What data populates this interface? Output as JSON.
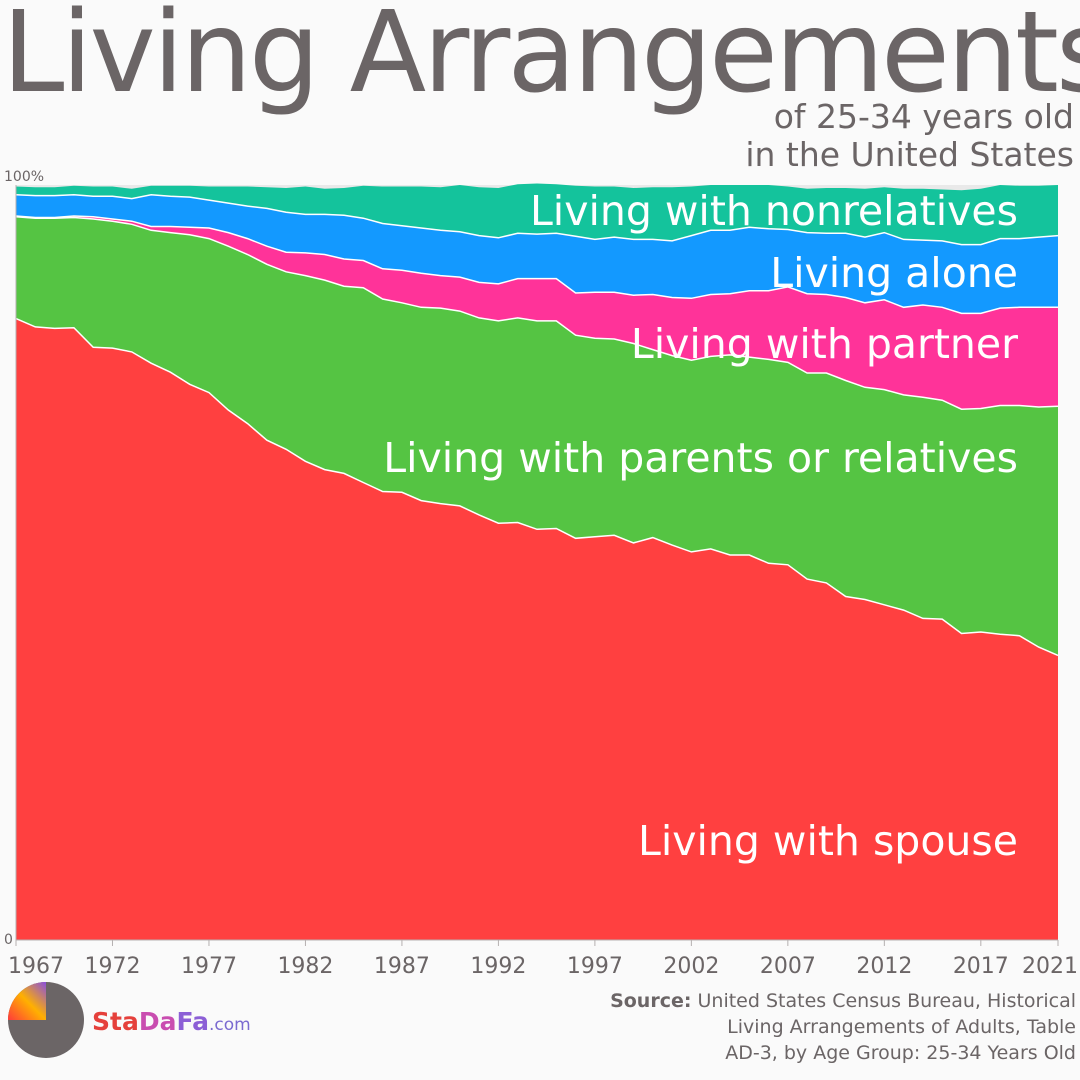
{
  "header": {
    "title": "Living Arrangements",
    "subtitle_line1": "of 25-34 years old",
    "subtitle_line2": "in the United States"
  },
  "source": {
    "prefix": "Source:",
    "line1": "United States Census Bureau, Historical",
    "line2": "Living Arrangements of Adults, Table",
    "line3": "AD-3, by Age Group: 25-34 Years Old"
  },
  "brand": {
    "name_sta": "Sta",
    "name_da": "Da",
    "name_fa": "Fa",
    "name_com": ".com"
  },
  "chart_data": {
    "type": "area",
    "stacked": true,
    "x": [
      1967,
      1968,
      1969,
      1970,
      1971,
      1972,
      1973,
      1974,
      1975,
      1976,
      1977,
      1978,
      1979,
      1980,
      1981,
      1982,
      1983,
      1984,
      1985,
      1986,
      1987,
      1988,
      1989,
      1990,
      1991,
      1992,
      1993,
      1994,
      1995,
      1996,
      1997,
      1998,
      1999,
      2000,
      2001,
      2002,
      2003,
      2004,
      2005,
      2006,
      2007,
      2008,
      2009,
      2010,
      2011,
      2012,
      2013,
      2014,
      2015,
      2016,
      2017,
      2018,
      2019,
      2020,
      2021
    ],
    "x_ticks": [
      1967,
      1972,
      1977,
      1982,
      1987,
      1992,
      1997,
      2002,
      2007,
      2012,
      2017,
      2021
    ],
    "y_ticks": [
      "0",
      "100%"
    ],
    "ylim": [
      0,
      100
    ],
    "xlim": [
      1967,
      2021
    ],
    "grid": false,
    "legend": "labels placed inside areas",
    "colors": {
      "spouse": "#ff4040",
      "parents": "#55c443",
      "partner": "#ff3399",
      "alone": "#1399ff",
      "nonrelatives": "#14c39c",
      "top_remainder": "#e9e9e9"
    },
    "series": [
      {
        "name": "Living with spouse",
        "key": "spouse",
        "values": [
          82.3,
          81.2,
          81.0,
          81.1,
          78.5,
          78.4,
          77.9,
          76.4,
          75.2,
          73.6,
          72.5,
          70.2,
          68.4,
          66.2,
          65.0,
          63.4,
          62.3,
          61.8,
          60.6,
          59.4,
          59.3,
          58.2,
          57.8,
          57.5,
          56.3,
          55.2,
          55.3,
          54.4,
          54.5,
          53.2,
          53.4,
          53.6,
          52.6,
          53.3,
          52.3,
          51.4,
          51.8,
          51.0,
          51.0,
          49.9,
          49.7,
          47.8,
          47.3,
          45.5,
          45.1,
          44.4,
          43.7,
          42.6,
          42.5,
          40.6,
          40.8,
          40.5,
          40.3,
          38.8,
          37.7
        ]
      },
      {
        "name": "Living with parents or relatives",
        "key": "parents",
        "values": [
          13.5,
          14.4,
          14.6,
          14.6,
          17.0,
          16.8,
          16.9,
          17.6,
          18.5,
          19.8,
          20.4,
          21.7,
          22.4,
          23.3,
          23.5,
          24.6,
          25.1,
          24.8,
          25.8,
          25.5,
          25.1,
          25.6,
          25.9,
          25.8,
          26.1,
          26.8,
          27.1,
          27.6,
          27.5,
          26.9,
          26.3,
          26.0,
          26.4,
          24.9,
          25.1,
          25.4,
          25.5,
          26.5,
          26.2,
          27.0,
          26.8,
          27.3,
          27.8,
          28.6,
          28.1,
          28.5,
          28.5,
          29.3,
          29.0,
          29.7,
          29.6,
          30.3,
          30.5,
          31.8,
          33.0
        ]
      },
      {
        "name": "Living with partner",
        "key": "partner",
        "values": [
          0.1,
          0.1,
          0.1,
          0.2,
          0.3,
          0.3,
          0.4,
          0.5,
          0.8,
          1.0,
          1.4,
          1.8,
          2.1,
          2.4,
          2.6,
          3.0,
          3.4,
          3.6,
          3.6,
          4.0,
          4.3,
          4.5,
          4.3,
          4.5,
          4.7,
          4.9,
          5.2,
          5.6,
          5.6,
          5.6,
          6.1,
          6.2,
          6.4,
          7.3,
          7.7,
          8.2,
          8.2,
          8.1,
          8.8,
          9.1,
          10.0,
          10.5,
          10.4,
          11.0,
          11.2,
          11.9,
          11.6,
          12.2,
          12.3,
          12.7,
          12.6,
          12.9,
          13.0,
          13.2,
          13.1
        ]
      },
      {
        "name": "Living alone",
        "key": "alone",
        "values": [
          2.8,
          2.9,
          2.9,
          2.8,
          2.7,
          3.0,
          3.0,
          4.2,
          4.0,
          4.0,
          3.7,
          3.9,
          4.3,
          5.0,
          5.3,
          5.1,
          5.3,
          5.8,
          5.6,
          6.0,
          5.9,
          6.0,
          6.0,
          6.0,
          6.2,
          6.1,
          6.0,
          5.9,
          6.0,
          7.5,
          7.0,
          7.3,
          7.4,
          7.3,
          7.5,
          8.3,
          8.5,
          8.4,
          8.4,
          8.2,
          7.6,
          8.1,
          8.1,
          8.5,
          8.7,
          8.9,
          9.0,
          8.6,
          8.8,
          9.1,
          9.1,
          9.2,
          9.1,
          9.3,
          9.5
        ]
      },
      {
        "name": "Living with nonrelatives",
        "key": "nonrelatives",
        "values": [
          1.1,
          1.1,
          1.1,
          1.2,
          1.3,
          1.3,
          1.3,
          1.2,
          1.4,
          1.5,
          1.8,
          2.2,
          2.6,
          2.8,
          3.2,
          3.7,
          3.4,
          3.6,
          4.3,
          4.9,
          5.2,
          5.5,
          5.7,
          6.2,
          6.4,
          6.6,
          6.5,
          6.7,
          6.5,
          6.7,
          7.0,
          6.7,
          6.8,
          6.9,
          7.1,
          6.5,
          6.0,
          6.0,
          5.6,
          5.8,
          5.7,
          5.8,
          6.0,
          6.0,
          6.4,
          6.0,
          6.7,
          6.8,
          6.8,
          7.2,
          7.4,
          7.1,
          7.0,
          6.8,
          6.7
        ]
      }
    ]
  }
}
